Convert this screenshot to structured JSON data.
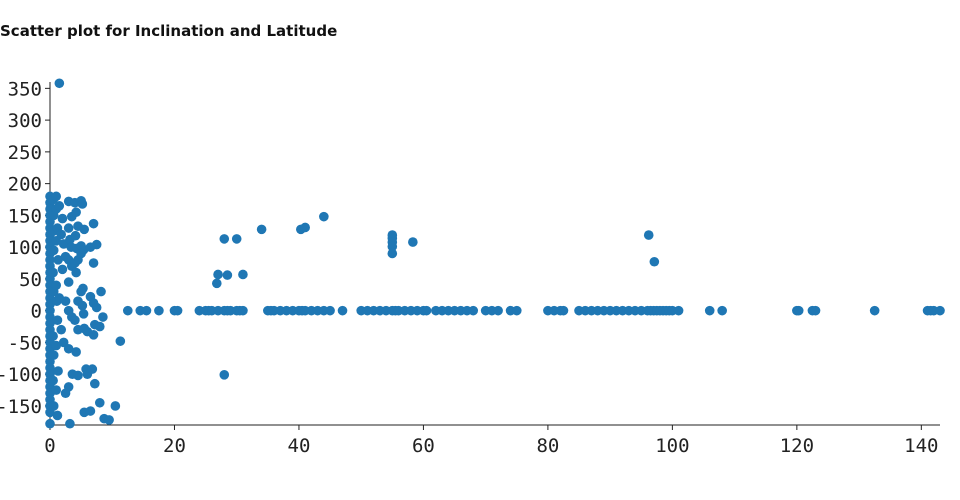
{
  "chart_data": {
    "type": "scatter",
    "title": "Scatter plot for Inclination and Latitude",
    "xlabel": "",
    "ylabel": "",
    "xlim": [
      0,
      143
    ],
    "ylim": [
      -180,
      360
    ],
    "grid": false,
    "legend": "none",
    "color": "#1f77b4",
    "x_ticks": [
      0,
      20,
      40,
      60,
      80,
      100,
      120,
      140
    ],
    "y_ticks": [
      -150,
      -100,
      -50,
      0,
      50,
      100,
      150,
      200,
      250,
      300,
      350
    ],
    "points": [
      [
        1.5,
        358
      ],
      [
        0,
        180
      ],
      [
        0,
        170
      ],
      [
        0,
        160
      ],
      [
        0,
        150
      ],
      [
        0,
        140
      ],
      [
        0,
        130
      ],
      [
        0,
        120
      ],
      [
        0,
        110
      ],
      [
        0,
        100
      ],
      [
        0,
        90
      ],
      [
        0,
        80
      ],
      [
        0,
        70
      ],
      [
        0,
        60
      ],
      [
        0,
        50
      ],
      [
        0,
        40
      ],
      [
        0,
        30
      ],
      [
        0,
        20
      ],
      [
        0,
        10
      ],
      [
        0,
        0
      ],
      [
        0,
        -10
      ],
      [
        0,
        -20
      ],
      [
        0,
        -30
      ],
      [
        0,
        -40
      ],
      [
        0,
        -50
      ],
      [
        0,
        -60
      ],
      [
        0,
        -70
      ],
      [
        0,
        -80
      ],
      [
        0,
        -90
      ],
      [
        0,
        -100
      ],
      [
        0,
        -110
      ],
      [
        0,
        -120
      ],
      [
        0,
        -130
      ],
      [
        0,
        -140
      ],
      [
        0,
        -150
      ],
      [
        0,
        -160
      ],
      [
        0,
        -178
      ],
      [
        0.5,
        175
      ],
      [
        0.6,
        150
      ],
      [
        0.5,
        125
      ],
      [
        0.6,
        95
      ],
      [
        0.5,
        60
      ],
      [
        0.6,
        30
      ],
      [
        0.5,
        -40
      ],
      [
        0.6,
        -70
      ],
      [
        0.5,
        -110
      ],
      [
        0.6,
        -150
      ],
      [
        1,
        180
      ],
      [
        1,
        160
      ],
      [
        1.2,
        130
      ],
      [
        1,
        110
      ],
      [
        1.3,
        80
      ],
      [
        1,
        40
      ],
      [
        1.1,
        15
      ],
      [
        1.2,
        -15
      ],
      [
        1,
        -55
      ],
      [
        1.3,
        -95
      ],
      [
        1,
        -125
      ],
      [
        1.2,
        -165
      ],
      [
        1.5,
        165
      ],
      [
        2,
        145
      ],
      [
        1.8,
        120
      ],
      [
        2.2,
        105
      ],
      [
        2.5,
        85
      ],
      [
        2,
        65
      ],
      [
        1.5,
        20
      ],
      [
        2.5,
        15
      ],
      [
        1.8,
        -30
      ],
      [
        2.2,
        -50
      ],
      [
        3,
        -120
      ],
      [
        2.5,
        -130
      ],
      [
        3,
        172
      ],
      [
        3.5,
        148
      ],
      [
        3,
        130
      ],
      [
        3.2,
        112
      ],
      [
        3.4,
        100
      ],
      [
        3,
        80
      ],
      [
        3.5,
        70
      ],
      [
        3,
        45
      ],
      [
        3,
        0
      ],
      [
        3.5,
        -10
      ],
      [
        3,
        -60
      ],
      [
        3.6,
        -100
      ],
      [
        3.2,
        -178
      ],
      [
        4,
        170
      ],
      [
        4.2,
        155
      ],
      [
        4.5,
        133
      ],
      [
        4.1,
        118
      ],
      [
        4.3,
        98
      ],
      [
        4.5,
        80
      ],
      [
        4,
        75
      ],
      [
        4.2,
        60
      ],
      [
        4.5,
        15
      ],
      [
        4,
        -15
      ],
      [
        4.5,
        -30
      ],
      [
        4.2,
        -65
      ],
      [
        4.5,
        -102
      ],
      [
        5,
        173
      ],
      [
        5.2,
        168
      ],
      [
        5.5,
        128
      ],
      [
        5,
        102
      ],
      [
        5.4,
        96
      ],
      [
        5,
        90
      ],
      [
        5.3,
        35
      ],
      [
        5,
        30
      ],
      [
        5.2,
        8
      ],
      [
        5.4,
        -5
      ],
      [
        5.5,
        -28
      ],
      [
        6,
        -33
      ],
      [
        5.8,
        -92
      ],
      [
        6,
        -100
      ],
      [
        5.5,
        -160
      ],
      [
        7,
        137
      ],
      [
        7.5,
        104
      ],
      [
        6.5,
        100
      ],
      [
        7,
        75
      ],
      [
        6.5,
        22
      ],
      [
        7,
        12
      ],
      [
        7.5,
        5
      ],
      [
        7.2,
        -22
      ],
      [
        7,
        -38
      ],
      [
        8,
        -25
      ],
      [
        6.8,
        -92
      ],
      [
        7.2,
        -115
      ],
      [
        6.5,
        -158
      ],
      [
        8.2,
        30
      ],
      [
        8.5,
        -10
      ],
      [
        8,
        -145
      ],
      [
        8.7,
        -170
      ],
      [
        9.5,
        -172
      ],
      [
        10.5,
        -150
      ],
      [
        11.3,
        -48
      ],
      [
        12.5,
        0
      ],
      [
        14.5,
        0
      ],
      [
        15.5,
        0
      ],
      [
        17.5,
        0
      ],
      [
        20,
        0
      ],
      [
        20.5,
        0
      ],
      [
        24,
        0
      ],
      [
        25,
        0
      ],
      [
        25.5,
        0
      ],
      [
        26,
        0
      ],
      [
        27,
        0
      ],
      [
        28,
        0
      ],
      [
        28.5,
        0
      ],
      [
        29,
        0
      ],
      [
        30,
        0
      ],
      [
        30.5,
        0
      ],
      [
        31,
        0
      ],
      [
        27,
        57
      ],
      [
        26.8,
        43
      ],
      [
        28,
        113
      ],
      [
        30,
        113
      ],
      [
        28.5,
        56
      ],
      [
        31,
        57
      ],
      [
        28,
        -101
      ],
      [
        34,
        128
      ],
      [
        35,
        0
      ],
      [
        35.5,
        0
      ],
      [
        36,
        0
      ],
      [
        37,
        0
      ],
      [
        38,
        0
      ],
      [
        39,
        0
      ],
      [
        40,
        0
      ],
      [
        40.5,
        0
      ],
      [
        41,
        0
      ],
      [
        42,
        0
      ],
      [
        43,
        0
      ],
      [
        44,
        0
      ],
      [
        45,
        0
      ],
      [
        47,
        0
      ],
      [
        40.3,
        128
      ],
      [
        41,
        131
      ],
      [
        44,
        148
      ],
      [
        50,
        0
      ],
      [
        51,
        0
      ],
      [
        52,
        0
      ],
      [
        53,
        0
      ],
      [
        54,
        0
      ],
      [
        55,
        0
      ],
      [
        55.5,
        0
      ],
      [
        56,
        0
      ],
      [
        57,
        0
      ],
      [
        58,
        0
      ],
      [
        59,
        0
      ],
      [
        60,
        0
      ],
      [
        60.5,
        0
      ],
      [
        55,
        119
      ],
      [
        55,
        114
      ],
      [
        55,
        108
      ],
      [
        55,
        101
      ],
      [
        55,
        90
      ],
      [
        58.3,
        108
      ],
      [
        62,
        0
      ],
      [
        63,
        0
      ],
      [
        64,
        0
      ],
      [
        65,
        0
      ],
      [
        66,
        0
      ],
      [
        67,
        0
      ],
      [
        68,
        0
      ],
      [
        70,
        0
      ],
      [
        71,
        0
      ],
      [
        72,
        0
      ],
      [
        74,
        0
      ],
      [
        75,
        0
      ],
      [
        80,
        0
      ],
      [
        81,
        0
      ],
      [
        82,
        0
      ],
      [
        82.5,
        0
      ],
      [
        85,
        0
      ],
      [
        86,
        0
      ],
      [
        87,
        0
      ],
      [
        88,
        0
      ],
      [
        89,
        0
      ],
      [
        90,
        0
      ],
      [
        91,
        0
      ],
      [
        92,
        0
      ],
      [
        93,
        0
      ],
      [
        94,
        0
      ],
      [
        95,
        0
      ],
      [
        96,
        0
      ],
      [
        96.5,
        0
      ],
      [
        97,
        0
      ],
      [
        97.5,
        0
      ],
      [
        98,
        0
      ],
      [
        98.5,
        0
      ],
      [
        99,
        0
      ],
      [
        99.5,
        0
      ],
      [
        100,
        0
      ],
      [
        101,
        0
      ],
      [
        96.2,
        119
      ],
      [
        97.1,
        77
      ],
      [
        106,
        0
      ],
      [
        108,
        0
      ],
      [
        120,
        0
      ],
      [
        120.3,
        0
      ],
      [
        122.5,
        0
      ],
      [
        123,
        0
      ],
      [
        132.5,
        0
      ],
      [
        141,
        0
      ],
      [
        141.5,
        0
      ],
      [
        142,
        0
      ],
      [
        143,
        0
      ]
    ]
  }
}
